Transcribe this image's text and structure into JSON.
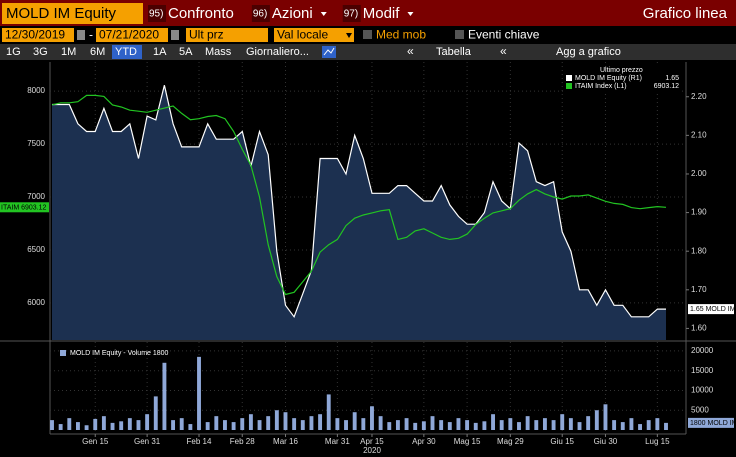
{
  "toolbar": {
    "ticker": "MOLD IM Equity",
    "menus": [
      {
        "key": "95)",
        "label": "Confronto",
        "dropdown": false
      },
      {
        "key": "96)",
        "label": "Azioni",
        "dropdown": true
      },
      {
        "key": "97)",
        "label": "Modif",
        "dropdown": true
      }
    ],
    "view": "Grafico linea",
    "start_date": "12/30/2019",
    "end_date": "07/21/2020",
    "field": "Ult prz",
    "currency": "Val locale",
    "options": [
      "Med mob",
      "Eventi chiave"
    ],
    "periods": [
      "1G",
      "3G",
      "1M",
      "6M",
      "YTD",
      "1A",
      "5A",
      "Mass"
    ],
    "active_period": "YTD",
    "frequency": "Giornaliero...",
    "table": "Tabella",
    "add": "Agg a grafico"
  },
  "chart_data": [
    {
      "type": "line",
      "legend_title": "Ultimo prezzo",
      "x_group_label": "2020",
      "categories": [
        null,
        null,
        null,
        null,
        null,
        "Gen 15",
        null,
        null,
        null,
        null,
        null,
        "Gen 31",
        null,
        null,
        null,
        null,
        null,
        "Feb 14",
        null,
        null,
        null,
        null,
        "Feb 28",
        null,
        null,
        null,
        null,
        "Mar 16",
        null,
        null,
        null,
        null,
        null,
        "Mar 31",
        null,
        null,
        null,
        "Apr 15",
        null,
        null,
        null,
        null,
        null,
        "Apr 30",
        null,
        null,
        null,
        null,
        "Mag 15",
        null,
        null,
        null,
        null,
        "Mag 29",
        null,
        null,
        null,
        null,
        null,
        "Giu 15",
        null,
        null,
        null,
        null,
        "Giu 30",
        null,
        null,
        null,
        null,
        null,
        "Lug 15",
        null
      ],
      "series": [
        {
          "name": "MOLD IM Equity",
          "axis_tag": "(R1)",
          "tag": "MOLD IM",
          "color": "#ffffff",
          "fill": "#1c3050",
          "axis": "y2",
          "values": [
            2.18,
            2.18,
            2.18,
            2.13,
            2.11,
            2.11,
            2.17,
            2.11,
            2.11,
            2.13,
            2.04,
            2.15,
            2.14,
            2.23,
            2.13,
            2.07,
            2.07,
            2.07,
            2.13,
            2.09,
            2.09,
            2.09,
            2.11,
            2.02,
            2.11,
            2.05,
            1.8,
            1.66,
            1.63,
            1.69,
            1.75,
            2.04,
            2.04,
            2.04,
            2.0,
            2.1,
            2.04,
            1.95,
            1.95,
            1.95,
            1.97,
            1.97,
            1.95,
            1.93,
            1.93,
            1.97,
            1.92,
            1.89,
            1.87,
            1.87,
            1.9,
            1.98,
            1.93,
            1.91,
            2.08,
            2.06,
            1.98,
            1.97,
            1.98,
            1.85,
            1.8,
            1.7,
            1.7,
            1.66,
            1.7,
            1.66,
            1.66,
            1.63,
            1.63,
            1.63,
            1.65,
            1.65
          ]
        },
        {
          "name": "ITAIM Index",
          "axis_tag": "(L1)",
          "tag": "ITAIM",
          "color": "#22c422",
          "values": [
            7870,
            7890,
            7890,
            7900,
            7960,
            7960,
            7950,
            7870,
            7850,
            7820,
            7810,
            7800,
            7820,
            7840,
            7860,
            7790,
            7730,
            7740,
            7760,
            7770,
            7740,
            7620,
            7450,
            7300,
            7000,
            6550,
            6250,
            6080,
            6100,
            6200,
            6300,
            6480,
            6550,
            6600,
            6730,
            6800,
            6830,
            6850,
            6870,
            6880,
            6600,
            6620,
            6680,
            6700,
            6660,
            6620,
            6600,
            6610,
            6650,
            6740,
            6800,
            6850,
            6870,
            6890,
            6970,
            7030,
            7070,
            7030,
            7000,
            6980,
            7010,
            7010,
            7020,
            6990,
            6960,
            6940,
            6930,
            6900,
            6890,
            6900,
            6910,
            6903.12
          ]
        }
      ],
      "ylim": [
        5650,
        8275
      ],
      "yticks": [
        6000,
        6500,
        7000,
        7500,
        8000
      ],
      "y2lim": [
        1.57,
        2.29
      ],
      "y2ticks": [
        {
          "value": 1.6,
          "label": "1.60"
        },
        {
          "value": 1.7,
          "label": "1.70"
        },
        {
          "value": 1.8,
          "label": "1.80"
        },
        {
          "value": 1.9,
          "label": "1.90"
        },
        {
          "value": 2.0,
          "label": "2.00"
        },
        {
          "value": 2.1,
          "label": "2.10"
        },
        {
          "value": 2.2,
          "label": "2.20"
        }
      ],
      "grid": true
    },
    {
      "type": "bar",
      "name": "MOLD IM Equity - Volume",
      "tag": "MOLD IM",
      "color": "#8fa8d8",
      "values": [
        2500,
        1500,
        3000,
        2000,
        1200,
        2800,
        3500,
        1800,
        2200,
        3000,
        2500,
        4000,
        8500,
        17000,
        2500,
        3000,
        1500,
        18500,
        2000,
        3500,
        2500,
        2000,
        3000,
        4000,
        2500,
        3500,
        5000,
        4500,
        3000,
        2500,
        3500,
        4000,
        9000,
        3000,
        2500,
        4500,
        3000,
        6000,
        3500,
        2000,
        2500,
        3000,
        1800,
        2200,
        3500,
        2500,
        2000,
        3000,
        2500,
        1800,
        2200,
        4000,
        2500,
        3000,
        2000,
        3500,
        2500,
        3000,
        2500,
        4000,
        3000,
        2000,
        3500,
        5000,
        6500,
        2500,
        2000,
        3000,
        1500,
        2500,
        3000,
        1800
      ],
      "ylim": [
        0,
        21500
      ],
      "yticks": [
        5000,
        10000,
        15000,
        20000
      ],
      "grid": true
    }
  ]
}
